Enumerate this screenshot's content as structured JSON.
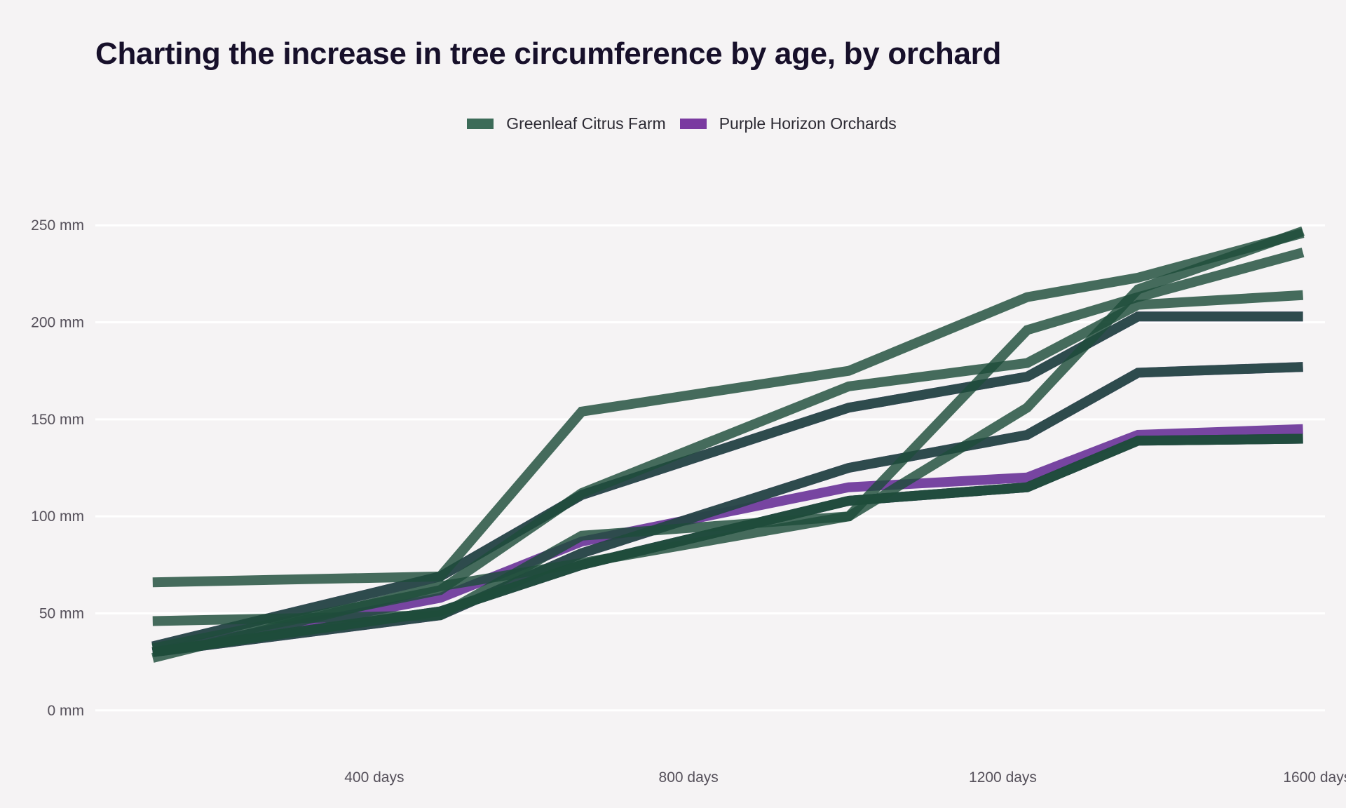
{
  "chart_data": {
    "type": "line",
    "title": "Charting the increase in tree circumference by age, by orchard",
    "xlabel": "",
    "ylabel": "",
    "x_tick_values": [
      400,
      800,
      1200,
      1600
    ],
    "x_tick_labels": [
      "400 days",
      "800 days",
      "1200 days",
      "1600 days"
    ],
    "y_tick_values": [
      0,
      50,
      100,
      150,
      200,
      250
    ],
    "y_tick_labels": [
      "0 mm",
      "50 mm",
      "100 mm",
      "150 mm",
      "200 mm",
      "250 mm"
    ],
    "xlim": [
      45,
      1610
    ],
    "ylim": [
      -12,
      262
    ],
    "grid": "horizontal",
    "legend_position": "top",
    "colors": {
      "Greenleaf Citrus Farm": "#1e4d3a",
      "Purple Horizon Orchards": "#5b1f8f",
      "background": "#f5f3f4",
      "grid": "#ffffff"
    },
    "series": [
      {
        "name": "Greenleaf Citrus Farm",
        "group": "Greenleaf Citrus Farm",
        "x": [
          118,
          484,
          664,
          1004,
          1231,
          1372,
          1582
        ],
        "y": [
          30,
          51,
          75,
          108,
          115,
          139,
          140
        ]
      },
      {
        "name": "Greenleaf Citrus Farm",
        "group": "Greenleaf Citrus Farm",
        "x": [
          118,
          484,
          664,
          1004,
          1231,
          1372,
          1582
        ],
        "y": [
          33,
          69,
          111,
          156,
          172,
          203,
          203
        ]
      },
      {
        "name": "Greenleaf Citrus Farm",
        "group": "Greenleaf Citrus Farm",
        "x": [
          118,
          484,
          664,
          1004,
          1231,
          1372,
          1582
        ],
        "y": [
          30,
          51,
          75,
          108,
          115,
          139,
          140
        ]
      },
      {
        "name": "Greenleaf Citrus Farm",
        "group": "Greenleaf Citrus Farm",
        "x": [
          118,
          484,
          664,
          1004,
          1231,
          1372,
          1582
        ],
        "y": [
          32,
          62,
          112,
          167,
          179,
          209,
          214
        ]
      },
      {
        "name": "Greenleaf Citrus Farm",
        "group": "Greenleaf Citrus Farm",
        "x": [
          118,
          484,
          664,
          1004,
          1231,
          1372,
          1582
        ],
        "y": [
          30,
          49,
          81,
          125,
          142,
          174,
          177
        ]
      },
      {
        "name": "Purple Horizon Orchards",
        "group": "Purple Horizon Orchards",
        "x": [
          118,
          484,
          664,
          1004,
          1231,
          1372,
          1582
        ],
        "y": [
          33,
          69,
          111,
          156,
          172,
          203,
          203
        ]
      },
      {
        "name": "Purple Horizon Orchards",
        "group": "Purple Horizon Orchards",
        "x": [
          118,
          484,
          664,
          1004,
          1231,
          1372,
          1582
        ],
        "y": [
          30,
          58,
          87,
          115,
          120,
          142,
          145
        ]
      },
      {
        "name": "Purple Horizon Orchards",
        "group": "Purple Horizon Orchards",
        "x": [
          118,
          484,
          664,
          1004,
          1231,
          1372,
          1582
        ],
        "y": [
          30,
          49,
          81,
          125,
          142,
          174,
          177
        ]
      },
      {
        "name": "Purple Horizon Orchards",
        "group": "Purple Horizon Orchards",
        "x": [
          118,
          484,
          664,
          1004,
          1231,
          1372,
          1582
        ],
        "y": [
          30,
          51,
          75,
          108,
          115,
          139,
          140
        ]
      },
      {
        "name": "Greenleaf Citrus Farm",
        "group": "Greenleaf Citrus Farm",
        "x": [
          118,
          484,
          664,
          1004,
          1231,
          1372,
          1582
        ],
        "y": [
          66,
          69,
          154,
          175,
          213,
          223,
          246
        ]
      },
      {
        "name": "Greenleaf Citrus Farm",
        "group": "Greenleaf Citrus Farm",
        "x": [
          118,
          484,
          664,
          1004,
          1231,
          1372,
          1582
        ],
        "y": [
          46,
          49,
          90,
          100,
          196,
          213,
          236
        ]
      },
      {
        "name": "Greenleaf Citrus Farm",
        "group": "Greenleaf Citrus Farm",
        "x": [
          118,
          484,
          664,
          1004,
          1231,
          1372,
          1582
        ],
        "y": [
          27,
          64,
          76,
          100,
          156,
          217,
          247
        ]
      }
    ],
    "legend": [
      {
        "label": "Greenleaf Citrus Farm",
        "color": "#3c6b58"
      },
      {
        "label": "Purple Horizon Orchards",
        "color": "#7a3aa0"
      }
    ]
  }
}
